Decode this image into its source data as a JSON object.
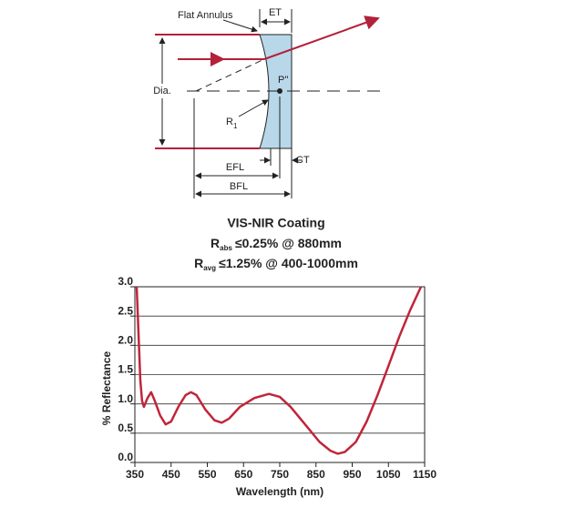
{
  "diagram": {
    "flat_annulus": "Flat Annulus",
    "et": "ET",
    "dia": "Dia.",
    "p": "P''",
    "r": "R",
    "r_sub": "1",
    "ct": "CT",
    "efl": "EFL",
    "bfl": "BFL"
  },
  "chart_data": {
    "type": "line",
    "title": "VIS-NIR Coating",
    "subtitle": [
      {
        "main": "R",
        "sub": "abs",
        "text": "≤0.25% @ 880mm"
      },
      {
        "main": "R",
        "sub": "avg",
        "text": "≤1.25% @ 400-1000mm"
      }
    ],
    "x_label": "Wavelength (nm)",
    "y_label": "% Reflectance",
    "x": [
      355,
      360,
      365,
      370,
      375,
      385,
      395,
      405,
      420,
      435,
      450,
      470,
      490,
      505,
      520,
      545,
      570,
      590,
      610,
      640,
      680,
      720,
      750,
      780,
      820,
      860,
      890,
      910,
      930,
      960,
      990,
      1020,
      1050,
      1080,
      1110,
      1140
    ],
    "values": [
      3.0,
      2.2,
      1.4,
      1.05,
      0.95,
      1.1,
      1.2,
      1.05,
      0.8,
      0.65,
      0.7,
      0.95,
      1.15,
      1.2,
      1.15,
      0.9,
      0.72,
      0.68,
      0.75,
      0.95,
      1.1,
      1.17,
      1.12,
      0.95,
      0.65,
      0.35,
      0.2,
      0.15,
      0.18,
      0.35,
      0.7,
      1.15,
      1.65,
      2.15,
      2.6,
      3.0
    ],
    "color": "#c0253a",
    "xlim": [
      350,
      1150
    ],
    "xticks": [
      350,
      450,
      550,
      650,
      750,
      850,
      950,
      1050,
      1150
    ],
    "ylim": [
      0,
      3.0
    ],
    "yticks": [
      {
        "value": 0,
        "label": "0.0"
      },
      0.5,
      {
        "value": 1,
        "label": "1.0"
      },
      1.5,
      {
        "value": 2,
        "label": "2.0"
      },
      2.5,
      {
        "value": 3,
        "label": "3.0"
      }
    ],
    "grid": true
  }
}
